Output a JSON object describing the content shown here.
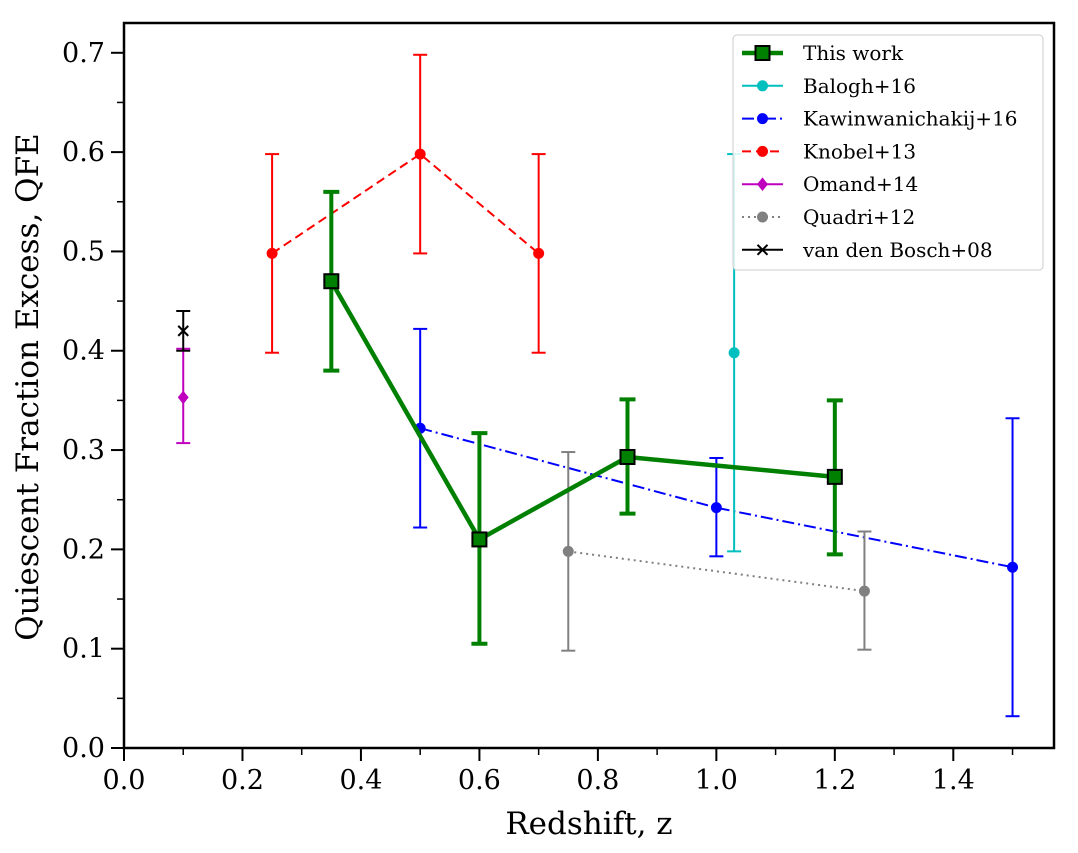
{
  "chart_data": {
    "type": "scatter",
    "xlabel": "Redshift, z",
    "ylabel": "Quiescent Fraction Excess, QFE",
    "xlim": [
      0.0,
      1.57
    ],
    "ylim": [
      0.0,
      0.73
    ],
    "x_ticks": [
      "0.0",
      "0.2",
      "0.4",
      "0.6",
      "0.8",
      "1.0",
      "1.2",
      "1.4"
    ],
    "y_ticks": [
      "0.0",
      "0.1",
      "0.2",
      "0.3",
      "0.4",
      "0.5",
      "0.6",
      "0.7"
    ],
    "grid": false,
    "legend_position": "top-right",
    "series": [
      {
        "name": "This work",
        "color": "#008000",
        "line": "solid",
        "marker": "square",
        "points": [
          {
            "x": 0.35,
            "y": 0.47,
            "lo": 0.38,
            "hi": 0.56
          },
          {
            "x": 0.6,
            "y": 0.21,
            "lo": 0.105,
            "hi": 0.317
          },
          {
            "x": 0.85,
            "y": 0.293,
            "lo": 0.236,
            "hi": 0.351
          },
          {
            "x": 1.2,
            "y": 0.273,
            "lo": 0.195,
            "hi": 0.35
          }
        ]
      },
      {
        "name": "Balogh+16",
        "color": "#00bfbf",
        "line": "solid",
        "marker": "circle",
        "points": [
          {
            "x": 1.03,
            "y": 0.398,
            "lo": 0.198,
            "hi": 0.598
          }
        ]
      },
      {
        "name": "Kawinwanichakij+16",
        "color": "#0000ff",
        "line": "dashdot",
        "marker": "circle",
        "points": [
          {
            "x": 0.5,
            "y": 0.322,
            "lo": 0.222,
            "hi": 0.422
          },
          {
            "x": 1.0,
            "y": 0.242,
            "lo": 0.193,
            "hi": 0.292
          },
          {
            "x": 1.5,
            "y": 0.182,
            "lo": 0.032,
            "hi": 0.332
          }
        ]
      },
      {
        "name": "Knobel+13",
        "color": "#ff0000",
        "line": "dashed",
        "marker": "circle",
        "points": [
          {
            "x": 0.25,
            "y": 0.498,
            "lo": 0.398,
            "hi": 0.598
          },
          {
            "x": 0.5,
            "y": 0.598,
            "lo": 0.498,
            "hi": 0.698
          },
          {
            "x": 0.7,
            "y": 0.498,
            "lo": 0.398,
            "hi": 0.598
          }
        ]
      },
      {
        "name": "Omand+14",
        "color": "#bf00bf",
        "line": "solid",
        "marker": "diamond",
        "points": [
          {
            "x": 0.1,
            "y": 0.353,
            "lo": 0.307,
            "hi": 0.402
          }
        ]
      },
      {
        "name": "Quadri+12",
        "color": "#808080",
        "line": "dotted",
        "marker": "circle",
        "points": [
          {
            "x": 0.75,
            "y": 0.198,
            "lo": 0.098,
            "hi": 0.298
          },
          {
            "x": 1.25,
            "y": 0.158,
            "lo": 0.099,
            "hi": 0.218
          }
        ]
      },
      {
        "name": "van den Bosch+08",
        "color": "#000000",
        "line": "solid",
        "marker": "x",
        "points": [
          {
            "x": 0.1,
            "y": 0.42,
            "lo": 0.4,
            "hi": 0.44
          }
        ]
      }
    ]
  }
}
